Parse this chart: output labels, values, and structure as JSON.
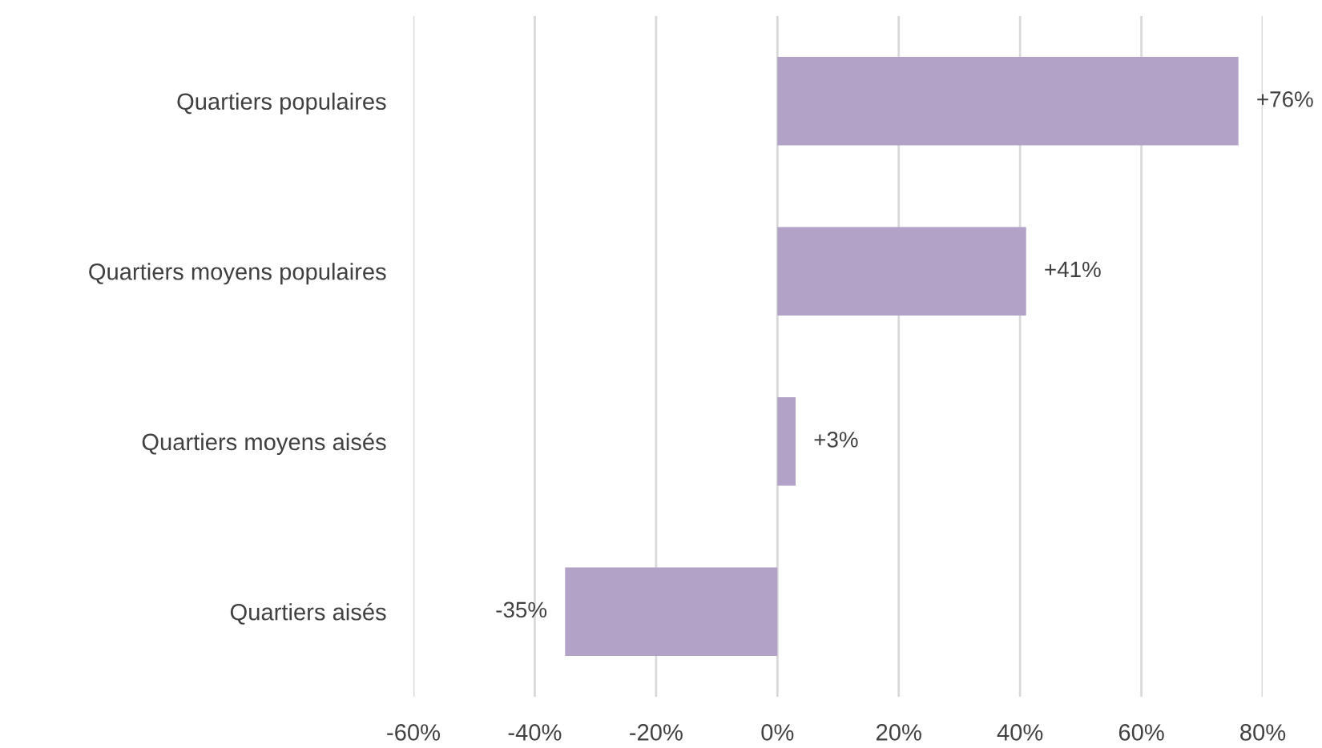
{
  "chart_data": {
    "type": "bar",
    "orientation": "horizontal",
    "categories": [
      "Quartiers populaires",
      "Quartiers moyens populaires",
      "Quartiers moyens aisés",
      "Quartiers aisés"
    ],
    "values": [
      76,
      41,
      3,
      -35
    ],
    "value_labels": [
      "+76%",
      "+41%",
      "+3%",
      "-35%"
    ],
    "color": "#b3a2c7",
    "xlim": [
      -60,
      80
    ],
    "xticks": [
      {
        "value": -60,
        "label": "-60%"
      },
      {
        "value": -40,
        "label": "-40%"
      },
      {
        "value": -20,
        "label": "-20%"
      },
      {
        "value": 0,
        "label": "0%"
      },
      {
        "value": 20,
        "label": "20%"
      },
      {
        "value": 40,
        "label": "40%"
      },
      {
        "value": 60,
        "label": "60%"
      },
      {
        "value": 80,
        "label": "80%"
      }
    ],
    "grid": "x",
    "legend": false
  }
}
